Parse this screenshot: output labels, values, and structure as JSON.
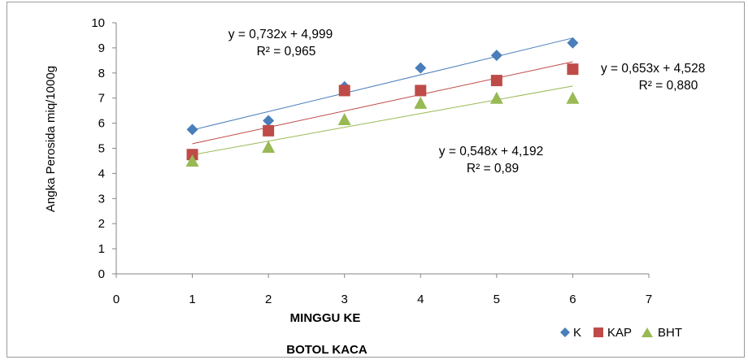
{
  "chart_data": {
    "type": "scatter",
    "title": "BOTOL KACA",
    "xlabel": "MINGGU KE",
    "ylabel": "Angka Perosida miq/1000g",
    "xlim": [
      0,
      7
    ],
    "ylim": [
      0,
      10
    ],
    "xticks": [
      "0",
      "1",
      "2",
      "3",
      "4",
      "5",
      "6",
      "7"
    ],
    "yticks": [
      "0",
      "1",
      "2",
      "3",
      "4",
      "5",
      "6",
      "7",
      "8",
      "9",
      "10"
    ],
    "grid": false,
    "legend_position": "bottom-right",
    "series": [
      {
        "name": "K",
        "marker": "diamond",
        "color": "#4a7ebb",
        "x": [
          1,
          2,
          3,
          4,
          5,
          6
        ],
        "y": [
          5.75,
          6.1,
          7.45,
          8.2,
          8.7,
          9.2
        ],
        "trendline": {
          "slope": 0.732,
          "intercept": 4.999,
          "equation": "y = 0,732x + 4,999",
          "r2": "R² = 0,965"
        }
      },
      {
        "name": "KAP",
        "marker": "square",
        "color": "#be4b48",
        "x": [
          1,
          2,
          3,
          4,
          5,
          6
        ],
        "y": [
          4.75,
          5.7,
          7.3,
          7.3,
          7.7,
          8.15
        ],
        "trendline": {
          "slope": 0.653,
          "intercept": 4.528,
          "equation": "y = 0,653x + 4,528",
          "r2": "R² = 0,880"
        }
      },
      {
        "name": "BHT",
        "marker": "triangle",
        "color": "#98b954",
        "x": [
          1,
          2,
          3,
          4,
          5,
          6
        ],
        "y": [
          4.5,
          5.05,
          6.15,
          6.8,
          7.0,
          7.0
        ],
        "trendline": {
          "slope": 0.548,
          "intercept": 4.192,
          "equation": "y = 0,548x + 4,192",
          "r2": "R² = 0,89"
        }
      }
    ]
  }
}
